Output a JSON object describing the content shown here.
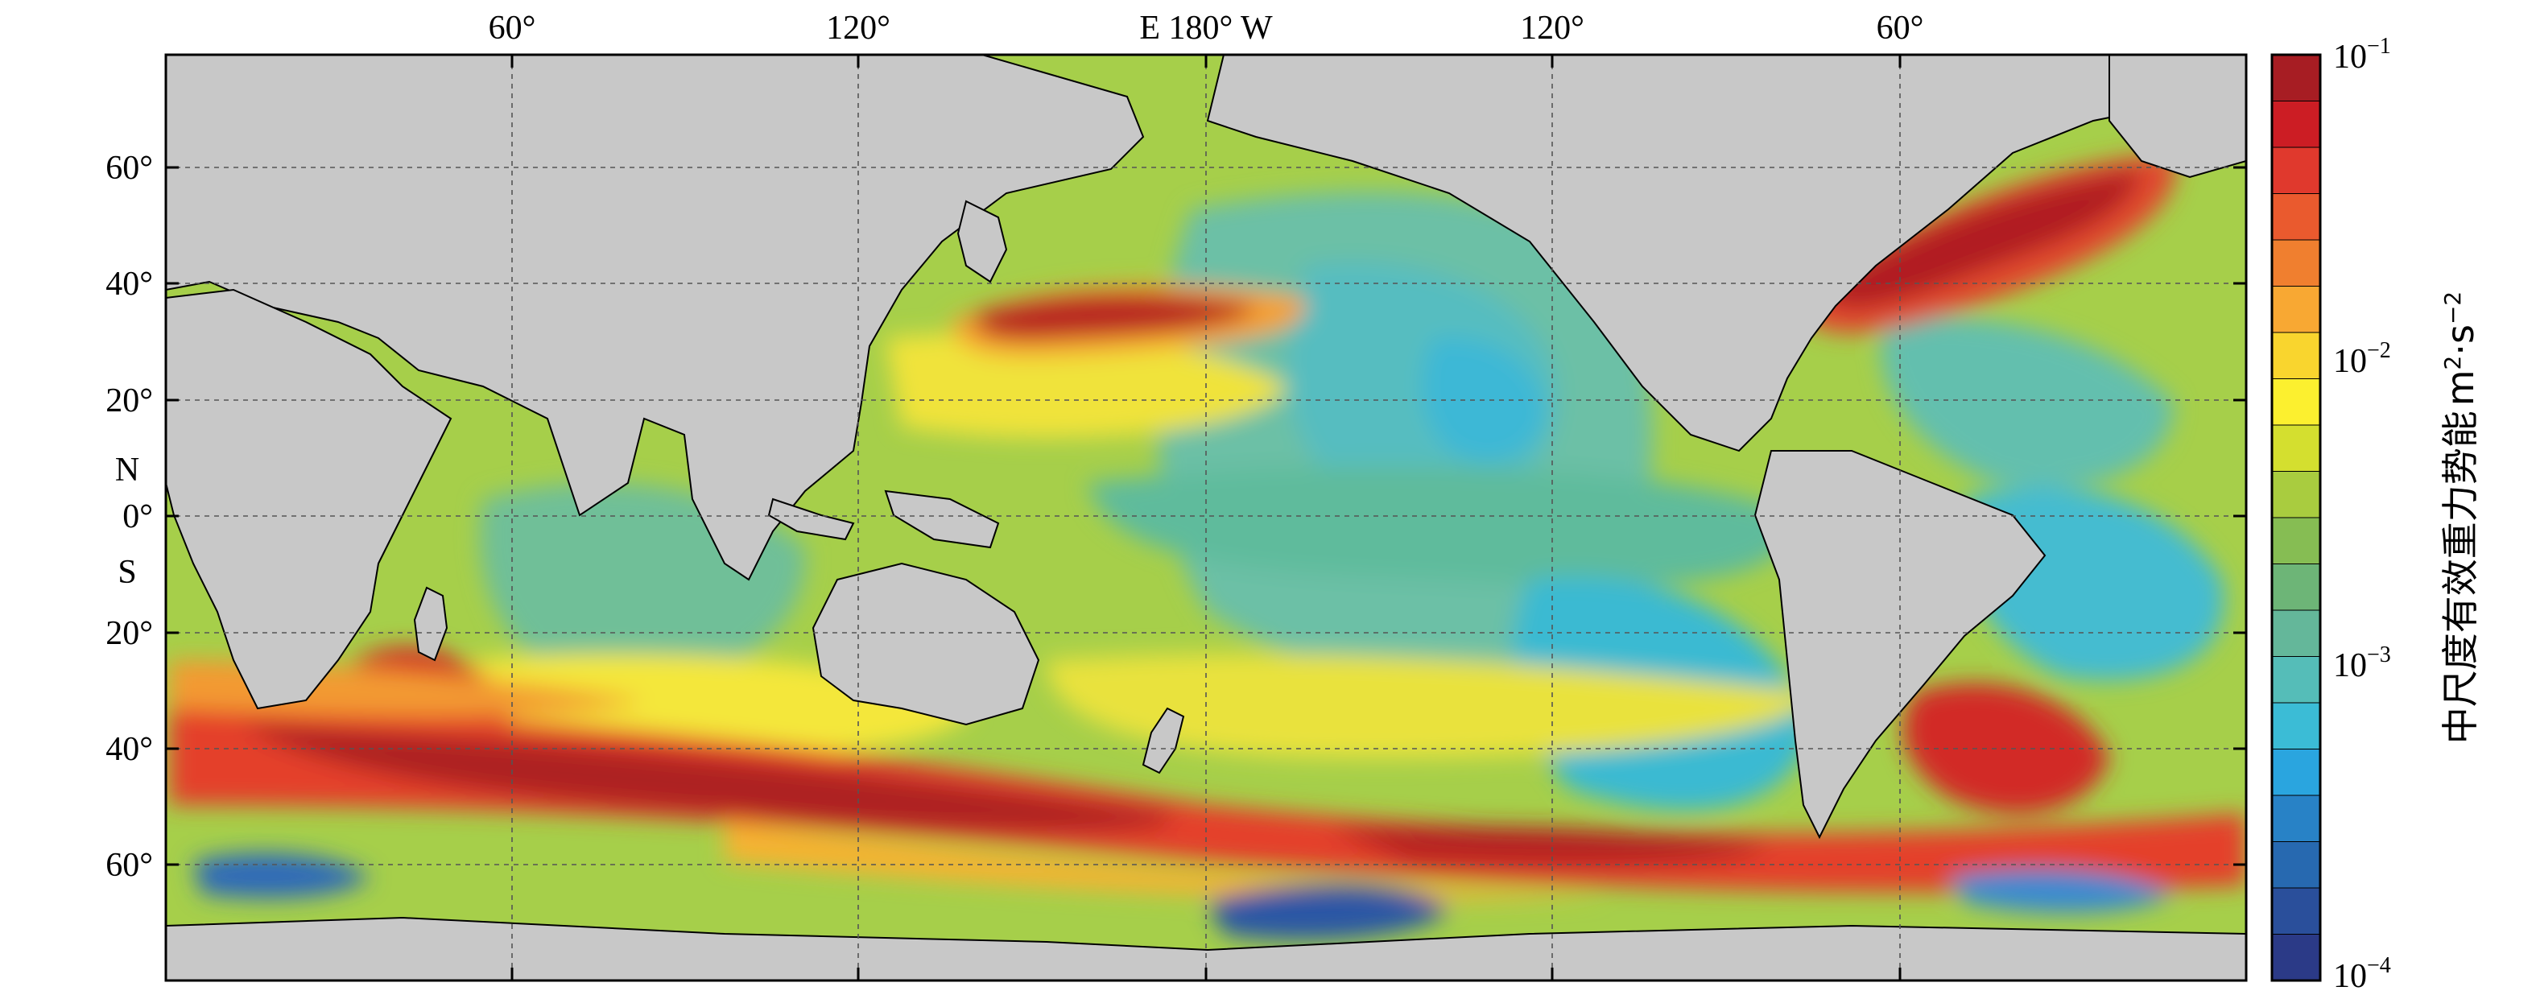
{
  "map": {
    "top_axis_labels": [
      "60°",
      "120°",
      "E 180° W",
      "120°",
      "60°"
    ],
    "left_axis_labels": [
      "60°",
      "40°",
      "20°",
      "N",
      "0°",
      "S",
      "20°",
      "40°",
      "60°"
    ]
  },
  "colorbar": {
    "title": "中尺度有效重力势能",
    "unit_base": "m",
    "unit_exp1": "2",
    "unit_dot": "·s",
    "unit_exp2": "−2",
    "tick_labels": [
      {
        "base": "10",
        "exp": "−1"
      },
      {
        "base": "10",
        "exp": "−2"
      },
      {
        "base": "10",
        "exp": "−3"
      },
      {
        "base": "10",
        "exp": "−4"
      }
    ],
    "colors": [
      "#a71d23",
      "#cc1d24",
      "#e0392d",
      "#ea5a2e",
      "#f07f2f",
      "#f8a833",
      "#f9d52e",
      "#fcf02f",
      "#d4df2f",
      "#a9cc3f",
      "#86bd53",
      "#6db577",
      "#64b79a",
      "#55bdb8",
      "#3bbcd6",
      "#2aa5df",
      "#2882c6",
      "#2769b0",
      "#2a4f9b",
      "#2b3a87"
    ]
  }
}
